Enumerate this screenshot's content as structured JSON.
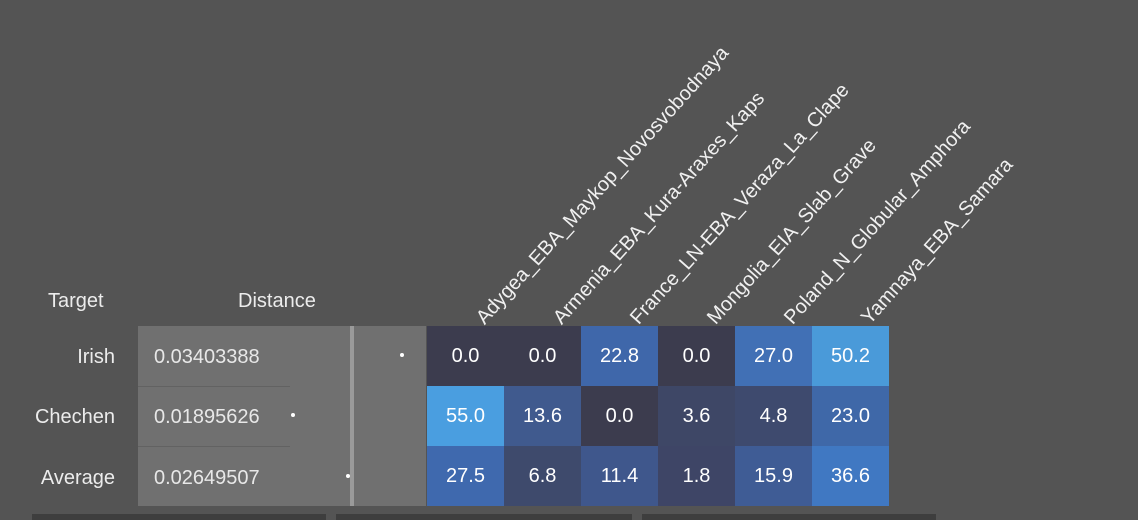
{
  "headers": {
    "target": "Target",
    "distance": "Distance"
  },
  "columns": [
    "Adygea_EBA_Maykop_Novosvobodnaya",
    "Armenia_EBA_Kura-Araxes_Kaps",
    "France_LN-EBA_Veraza_La_Clape",
    "Mongolia_EIA_Slab_Grave",
    "Poland_N_Globular_Amphora",
    "Yamnaya_EBA_Samara"
  ],
  "rows": [
    {
      "target": "Irish",
      "distance": "0.03403388",
      "values": [
        "0.0",
        "0.0",
        "22.8",
        "0.0",
        "27.0",
        "50.2"
      ]
    },
    {
      "target": "Chechen",
      "distance": "0.01895626",
      "values": [
        "55.0",
        "13.6",
        "0.0",
        "3.6",
        "4.8",
        "23.0"
      ]
    },
    {
      "target": "Average",
      "distance": "0.02649507",
      "values": [
        "27.5",
        "6.8",
        "11.4",
        "1.8",
        "15.9",
        "36.6"
      ]
    }
  ],
  "cell_colors": [
    [
      "#3c3c4e",
      "#3c3c4e",
      "#3f67aa",
      "#3c3c4e",
      "#4170b5",
      "#4a9ad9"
    ],
    [
      "#4a9ee0",
      "#405a8e",
      "#3c3c4e",
      "#3e4766",
      "#3e4a6e",
      "#3f68a8"
    ],
    [
      "#3f69ae",
      "#3e4a6c",
      "#3f578c",
      "#3e4566",
      "#3f5c95",
      "#4078c2"
    ]
  ]
}
